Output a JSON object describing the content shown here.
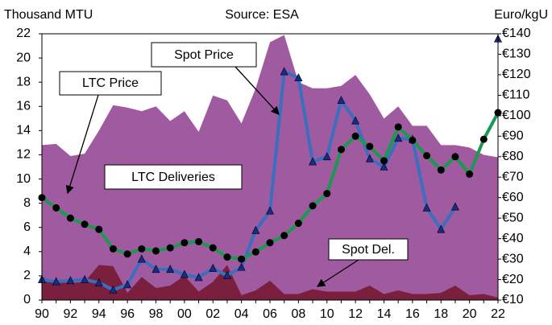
{
  "chart_data": {
    "type": "area-line",
    "ylabel": "Thousand MTU",
    "source": "Source: ESA",
    "y2label": "Euro/kgU",
    "categories": [
      "90",
      null,
      "92",
      null,
      "94",
      null,
      "96",
      null,
      "98",
      null,
      "00",
      null,
      "02",
      null,
      "04",
      null,
      "06",
      null,
      "08",
      null,
      "10",
      null,
      "12",
      null,
      "14",
      null,
      "16",
      null,
      "18",
      null,
      "20",
      null,
      "22"
    ],
    "ylim": [
      0,
      22
    ],
    "yticks": [
      0,
      2,
      4,
      6,
      8,
      10,
      12,
      14,
      16,
      18,
      20,
      22
    ],
    "y2lim": [
      10,
      140
    ],
    "y2ticks": [
      {
        "value": 10,
        "label": "€10"
      },
      {
        "value": 20,
        "label": "€20"
      },
      {
        "value": 30,
        "label": "€30"
      },
      {
        "value": 40,
        "label": "€40"
      },
      {
        "value": 50,
        "label": "€50"
      },
      {
        "value": 60,
        "label": "€60"
      },
      {
        "value": 70,
        "label": "€70"
      },
      {
        "value": 80,
        "label": "€80"
      },
      {
        "value": 90,
        "label": "€90"
      },
      {
        "value": 100,
        "label": "€100"
      },
      {
        "value": 110,
        "label": "€110"
      },
      {
        "value": 120,
        "label": "€120"
      },
      {
        "value": 130,
        "label": "€130"
      },
      {
        "value": 140,
        "label": "€140"
      }
    ],
    "series": [
      {
        "name": "LTC Deliveries",
        "kind": "area",
        "color": "#a05aa0",
        "values": [
          12.8,
          12.9,
          11.9,
          12.1,
          14.0,
          16.1,
          15.9,
          15.6,
          16.0,
          14.8,
          15.6,
          13.9,
          16.9,
          16.5,
          14.6,
          17.5,
          21.3,
          21.9,
          18.0,
          17.5,
          17.5,
          17.7,
          18.6,
          17.0,
          15.0,
          16.0,
          14.4,
          14.4,
          12.8,
          12.8,
          12.6,
          12.0,
          11.8
        ]
      },
      {
        "name": "Spot Del.",
        "kind": "area",
        "color": "#7a1f3d",
        "values": [
          1.9,
          1.5,
          1.4,
          1.5,
          2.9,
          2.8,
          0.6,
          1.9,
          1.0,
          1.2,
          2.0,
          0.7,
          1.5,
          2.9,
          0.4,
          0.8,
          1.6,
          0.5,
          0.5,
          0.9,
          0.7,
          0.7,
          0.7,
          1.2,
          0.5,
          0.8,
          0.5,
          0.5,
          0.6,
          1.2,
          0.4,
          0.5,
          0.2
        ]
      },
      {
        "name": "Spot Price",
        "kind": "line",
        "axis": "y2",
        "color": "#3a6fc0",
        "marker": "triangle",
        "values": [
          20,
          19,
          19.5,
          20,
          18.5,
          15,
          17.5,
          30,
          25,
          25,
          22.5,
          21,
          25.5,
          22,
          26,
          44,
          53.5,
          121.5,
          118.5,
          77.5,
          80,
          107.5,
          97.5,
          79,
          75,
          89,
          88.5,
          55,
          44.5,
          55.5,
          null,
          null,
          137.5
        ]
      },
      {
        "name": "LTC Price",
        "kind": "line",
        "axis": "y2",
        "color": "#1a9a50",
        "marker": "circle",
        "values": [
          60,
          55,
          50,
          47,
          44.5,
          35,
          32.5,
          35,
          34,
          35.5,
          38,
          38.5,
          35.5,
          31,
          30,
          33.5,
          38,
          41.5,
          47.5,
          56,
          62,
          83.5,
          90,
          85,
          78,
          94.5,
          88,
          80.5,
          73.5,
          80,
          71.5,
          88.5,
          101.5
        ]
      }
    ]
  }
}
